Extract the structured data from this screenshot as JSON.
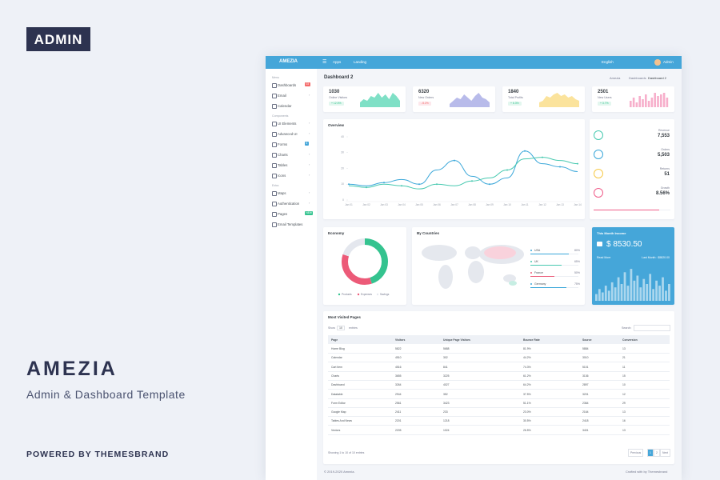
{
  "brand": {
    "badge": "ADMIN",
    "title": "AMEZIA",
    "subtitle": "Admin & Dashboard Template",
    "powered": "POWERED BY THEMESBRAND"
  },
  "topbar": {
    "logo": "AMEZIA",
    "links": [
      "Apps",
      "Landing"
    ],
    "language": "English",
    "user": "Admin"
  },
  "page": {
    "title": "Dashboard 2",
    "breadcrumb": [
      "Amezia",
      "Dashboards",
      "Dashboard 2"
    ],
    "footer_left": "© 2019-2020 Amezia.",
    "footer_right": "Crafted with by Themesbrand"
  },
  "sidebar": [
    {
      "heading": "Menu",
      "items": [
        {
          "label": "Dashboards",
          "badge": "03"
        },
        {
          "label": "Email"
        },
        {
          "label": "Calendar"
        }
      ]
    },
    {
      "heading": "Components",
      "items": [
        {
          "label": "UI Elements"
        },
        {
          "label": "Advanced UI"
        },
        {
          "label": "Forms",
          "badge": "6"
        },
        {
          "label": "Charts"
        },
        {
          "label": "Tables"
        },
        {
          "label": "Icons"
        }
      ]
    },
    {
      "heading": "Extra",
      "items": [
        {
          "label": "Maps"
        },
        {
          "label": "Authentication"
        },
        {
          "label": "Pages",
          "badge": "NEW"
        },
        {
          "label": "Email Templates"
        }
      ]
    }
  ],
  "stats": [
    {
      "value": "1030",
      "label": "Online Visitors",
      "change": "+ 12.5%",
      "color": "#7fe0c6",
      "type": "area",
      "trend": [
        3,
        5,
        4,
        7,
        6,
        9,
        6,
        8,
        5,
        9,
        7,
        4
      ]
    },
    {
      "value": "6320",
      "label": "New Orders",
      "change": "- 8.2%",
      "color": "#b8bbea",
      "type": "area",
      "trend": [
        2,
        4,
        6,
        5,
        8,
        6,
        4,
        7,
        9,
        6,
        5,
        3
      ]
    },
    {
      "value": "1840",
      "label": "Total Profits",
      "change": "+ 6.3%",
      "color": "#fbe39c",
      "type": "area",
      "trend": [
        3,
        4,
        7,
        6,
        8,
        9,
        7,
        8,
        6,
        7,
        5,
        4
      ]
    },
    {
      "value": "2501",
      "label": "New Users",
      "change": "+ 3.7%",
      "color": "#f7afcb",
      "type": "bar",
      "trend": [
        4,
        6,
        3,
        7,
        5,
        8,
        4,
        6,
        9,
        7,
        8,
        9,
        6
      ]
    }
  ],
  "overview": {
    "title": "Overview",
    "chart_data": {
      "type": "line",
      "categories": [
        "Jan 01",
        "Jan 02",
        "Jan 03",
        "Jan 04",
        "Jan 05",
        "Jan 06",
        "Jan 07",
        "Jan 08",
        "Jan 09",
        "Jan 10",
        "Jan 11",
        "Jan 12",
        "Jan 13",
        "Jan 14"
      ],
      "series": [
        {
          "name": "Revenue",
          "color": "#3aa7d9",
          "values": [
            10,
            9,
            11,
            13,
            10,
            19,
            25,
            15,
            10,
            14,
            31,
            23,
            21,
            18
          ]
        },
        {
          "name": "Orders",
          "color": "#48c9b0",
          "values": [
            9,
            8,
            10,
            9,
            7,
            10,
            9,
            12,
            14,
            19,
            26,
            27,
            25,
            23
          ]
        }
      ],
      "ylim": [
        0,
        40
      ],
      "yticks": [
        0,
        10,
        20,
        30,
        40
      ],
      "grid": false
    },
    "kpis": [
      {
        "label": "Revenue",
        "value": "7,553",
        "color": "#48c9b0"
      },
      {
        "label": "Orders",
        "value": "5,503",
        "color": "#3aa7d9"
      },
      {
        "label": "Returns",
        "value": "51",
        "color": "#f7c948"
      },
      {
        "label": "Growth",
        "value": "8.56%",
        "color": "#ef5e8a"
      }
    ]
  },
  "economy": {
    "title": "Economy",
    "chart_data": {
      "type": "pie",
      "series": [
        {
          "name": "Products",
          "color": "#34c38f",
          "values": [
            45
          ]
        },
        {
          "name": "Expenses",
          "color": "#ec5a78",
          "values": [
            35
          ]
        },
        {
          "name": "Savings",
          "color": "#e4e7ee",
          "values": [
            20
          ]
        }
      ]
    }
  },
  "countries": {
    "title": "By Countries",
    "items": [
      {
        "name": "USA",
        "value": 80,
        "label": "80%",
        "color": "#3aa7d9"
      },
      {
        "name": "UK",
        "value": 65,
        "label": "65%",
        "color": "#48c9b0"
      },
      {
        "name": "France",
        "value": 50,
        "label": "50%",
        "color": "#ec5a78"
      },
      {
        "name": "Germany",
        "value": 75,
        "label": "75%",
        "color": "#3aa7d9"
      }
    ]
  },
  "income": {
    "title": "This Month Income",
    "amount": "$ 8530.50",
    "more": "Read More",
    "last": "Last Month : $5820.00",
    "chart_data": {
      "type": "bar",
      "ylim": [
        0,
        100
      ],
      "values": [
        20,
        35,
        25,
        45,
        30,
        55,
        40,
        70,
        50,
        85,
        45,
        95,
        60,
        75,
        40,
        65,
        50,
        80,
        35,
        60,
        45,
        70,
        30,
        50
      ]
    }
  },
  "table": {
    "title": "Most Visited Pages",
    "show": "Show",
    "length": "10",
    "entries": "entries",
    "search": "Search:",
    "columns": [
      "Page",
      "Visitors",
      "Unique Page Visitors",
      "Bounce Rate",
      "Source",
      "Conversion"
    ],
    "rows": [
      [
        "Home Blog",
        "5822",
        "5688",
        "81.9%",
        "5884",
        "13"
      ],
      [
        "Calendar",
        "4510",
        "302",
        "44.2%",
        "3010",
        "21"
      ],
      [
        "Cart Item",
        "4516",
        "841",
        "74.3%",
        "5101",
        "11"
      ],
      [
        "Charts",
        "3655",
        "3225",
        "61.2%",
        "3136",
        "15"
      ],
      [
        "Dashboard",
        "3264",
        "4027",
        "64.2%",
        "2897",
        "10"
      ],
      [
        "Datatable",
        "2944",
        "352",
        "37.5%",
        "3201",
        "12"
      ],
      [
        "Form Editor",
        "2561",
        "3423",
        "51.1%",
        "2364",
        "29"
      ],
      [
        "Google Map",
        "2411",
        "233",
        "23.0%",
        "2164",
        "13"
      ],
      [
        "Tables And News",
        "2201",
        "1218",
        "30.5%",
        "2418",
        "16"
      ],
      [
        "Vectors",
        "2205",
        "1024",
        "26.5%",
        "3401",
        "13"
      ]
    ],
    "info": "Showing 1 to 10 of 10 entries",
    "pagination": [
      "Previous",
      "1",
      "2",
      "Next"
    ]
  }
}
